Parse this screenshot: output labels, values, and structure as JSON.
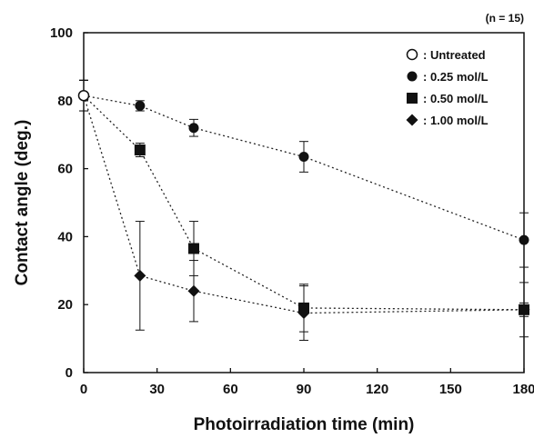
{
  "chart_data": {
    "type": "scatter",
    "annotation": "(n = 15)",
    "xlabel": "Photoirradiation time (min)",
    "ylabel": "Contact angle (deg.)",
    "xlim": [
      0,
      180
    ],
    "ylim": [
      0,
      100
    ],
    "xticks": [
      0,
      30,
      60,
      90,
      120,
      150,
      180
    ],
    "yticks": [
      0,
      20,
      40,
      60,
      80,
      100
    ],
    "grid": false,
    "legend_position": "top-right",
    "series": [
      {
        "name": ": Untreated",
        "marker": "circle-open",
        "color": "#111111",
        "x": [
          0
        ],
        "y": [
          81.5
        ],
        "err": [
          4.5
        ]
      },
      {
        "name": ": 0.25 mol/L",
        "marker": "circle",
        "color": "#111111",
        "x": [
          0,
          23,
          45,
          90,
          180
        ],
        "y": [
          81.5,
          78.5,
          72,
          63.5,
          39
        ],
        "err": [
          4.5,
          1.5,
          2.5,
          4.5,
          8
        ]
      },
      {
        "name": ": 0.50 mol/L",
        "marker": "square",
        "color": "#111111",
        "x": [
          0,
          23,
          45,
          90,
          180
        ],
        "y": [
          81.5,
          65.5,
          36.5,
          19,
          18.5
        ],
        "err": [
          4.5,
          2,
          8,
          7,
          8
        ]
      },
      {
        "name": ": 1.00 mol/L",
        "marker": "diamond",
        "color": "#111111",
        "x": [
          0,
          23,
          45,
          90,
          180
        ],
        "y": [
          81.5,
          28.5,
          24,
          17.5,
          18.5
        ],
        "err": [
          4.5,
          16,
          9,
          8,
          2
        ]
      }
    ]
  }
}
